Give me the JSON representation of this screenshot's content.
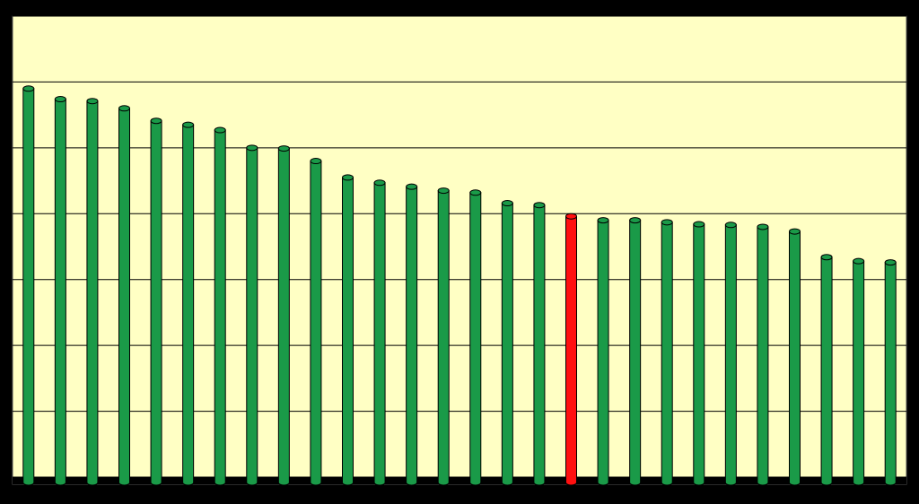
{
  "chart_data": {
    "type": "bar",
    "values": [
      5.9,
      5.74,
      5.71,
      5.6,
      5.41,
      5.35,
      5.27,
      5.0,
      4.99,
      4.8,
      4.55,
      4.47,
      4.41,
      4.35,
      4.32,
      4.16,
      4.13,
      3.96,
      3.9,
      3.9,
      3.87,
      3.84,
      3.83,
      3.8,
      3.73,
      3.34,
      3.28,
      3.26
    ],
    "colors": [
      "#1a9a48",
      "#1a9a48",
      "#1a9a48",
      "#1a9a48",
      "#1a9a48",
      "#1a9a48",
      "#1a9a48",
      "#1a9a48",
      "#1a9a48",
      "#1a9a48",
      "#1a9a48",
      "#1a9a48",
      "#1a9a48",
      "#1a9a48",
      "#1a9a48",
      "#1a9a48",
      "#1a9a48",
      "#ff1010",
      "#1a9a48",
      "#1a9a48",
      "#1a9a48",
      "#1a9a48",
      "#1a9a48",
      "#1a9a48",
      "#1a9a48",
      "#1a9a48",
      "#1a9a48",
      "#1a9a48"
    ],
    "ylim": [
      0,
      7
    ],
    "yticks": [
      0,
      1,
      2,
      3,
      4,
      5,
      6,
      7
    ],
    "grid": true
  }
}
